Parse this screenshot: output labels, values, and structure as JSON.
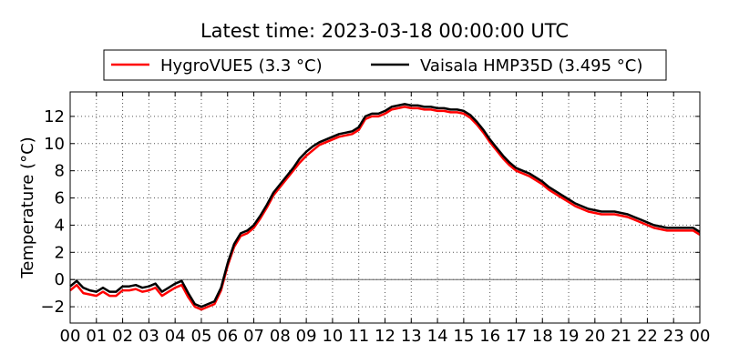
{
  "chart_data": {
    "type": "line",
    "title": "Latest time: 2023-03-18 00:00:00 UTC",
    "ylabel": "Temperature (°C)",
    "xlabel": "",
    "xlim": [
      0,
      24
    ],
    "ylim": [
      -3.2,
      13.8
    ],
    "x_ticks": [
      "00",
      "01",
      "02",
      "03",
      "04",
      "05",
      "06",
      "07",
      "08",
      "09",
      "10",
      "11",
      "12",
      "13",
      "14",
      "15",
      "16",
      "17",
      "18",
      "19",
      "20",
      "21",
      "22",
      "23",
      "00"
    ],
    "y_ticks": [
      -2,
      0,
      2,
      4,
      6,
      8,
      10,
      12
    ],
    "grid": true,
    "grid_style": "dotted",
    "zero_line": true,
    "legend_position": "top",
    "series": [
      {
        "name": "HygroVUE5 (3.3 °C)",
        "color": "#ff0000",
        "x": [
          0,
          0.25,
          0.5,
          0.75,
          1,
          1.25,
          1.5,
          1.75,
          2,
          2.25,
          2.5,
          2.75,
          3,
          3.25,
          3.5,
          3.75,
          4,
          4.25,
          4.5,
          4.75,
          5,
          5.25,
          5.5,
          5.75,
          6,
          6.25,
          6.5,
          6.75,
          7,
          7.25,
          7.5,
          7.75,
          8,
          8.25,
          8.5,
          8.75,
          9,
          9.25,
          9.5,
          9.75,
          10,
          10.25,
          10.5,
          10.75,
          11,
          11.25,
          11.5,
          11.75,
          12,
          12.25,
          12.5,
          12.75,
          13,
          13.25,
          13.5,
          13.75,
          14,
          14.25,
          14.5,
          14.75,
          15,
          15.25,
          15.5,
          15.75,
          16,
          16.25,
          16.5,
          16.75,
          17,
          17.25,
          17.5,
          17.75,
          18,
          18.25,
          18.5,
          18.75,
          19,
          19.25,
          19.5,
          19.75,
          20,
          20.25,
          20.5,
          20.75,
          21,
          21.25,
          21.5,
          21.75,
          22,
          22.25,
          22.5,
          22.75,
          23,
          23.25,
          23.5,
          23.75,
          24
        ],
        "y": [
          -0.8,
          -0.4,
          -1.0,
          -1.1,
          -1.2,
          -0.9,
          -1.2,
          -1.2,
          -0.8,
          -0.8,
          -0.7,
          -0.9,
          -0.8,
          -0.6,
          -1.2,
          -0.9,
          -0.6,
          -0.4,
          -1.3,
          -2.0,
          -2.2,
          -2.0,
          -1.8,
          -0.8,
          1.0,
          2.4,
          3.2,
          3.4,
          3.8,
          4.5,
          5.3,
          6.2,
          6.8,
          7.4,
          8.0,
          8.6,
          9.1,
          9.5,
          9.9,
          10.1,
          10.3,
          10.5,
          10.6,
          10.7,
          11.0,
          11.8,
          12.0,
          12.0,
          12.2,
          12.5,
          12.6,
          12.7,
          12.6,
          12.6,
          12.5,
          12.5,
          12.4,
          12.4,
          12.3,
          12.3,
          12.2,
          11.9,
          11.4,
          10.8,
          10.1,
          9.5,
          8.9,
          8.4,
          8.0,
          7.8,
          7.6,
          7.3,
          7.0,
          6.6,
          6.3,
          6.0,
          5.7,
          5.4,
          5.2,
          5.0,
          4.9,
          4.8,
          4.8,
          4.8,
          4.7,
          4.6,
          4.4,
          4.2,
          4.0,
          3.8,
          3.7,
          3.6,
          3.6,
          3.6,
          3.6,
          3.6,
          3.3
        ]
      },
      {
        "name": "Vaisala HMP35D (3.495 °C)",
        "color": "#000000",
        "x": [
          0,
          0.25,
          0.5,
          0.75,
          1,
          1.25,
          1.5,
          1.75,
          2,
          2.25,
          2.5,
          2.75,
          3,
          3.25,
          3.5,
          3.75,
          4,
          4.25,
          4.5,
          4.75,
          5,
          5.25,
          5.5,
          5.75,
          6,
          6.25,
          6.5,
          6.75,
          7,
          7.25,
          7.5,
          7.75,
          8,
          8.25,
          8.5,
          8.75,
          9,
          9.25,
          9.5,
          9.75,
          10,
          10.25,
          10.5,
          10.75,
          11,
          11.25,
          11.5,
          11.75,
          12,
          12.25,
          12.5,
          12.75,
          13,
          13.25,
          13.5,
          13.75,
          14,
          14.25,
          14.5,
          14.75,
          15,
          15.25,
          15.5,
          15.75,
          16,
          16.25,
          16.5,
          16.75,
          17,
          17.25,
          17.5,
          17.75,
          18,
          18.25,
          18.5,
          18.75,
          19,
          19.25,
          19.5,
          19.75,
          20,
          20.25,
          20.5,
          20.75,
          21,
          21.25,
          21.5,
          21.75,
          22,
          22.25,
          22.5,
          22.75,
          23,
          23.25,
          23.5,
          23.75,
          24
        ],
        "y": [
          -0.5,
          -0.1,
          -0.6,
          -0.8,
          -0.9,
          -0.6,
          -0.9,
          -0.9,
          -0.5,
          -0.5,
          -0.4,
          -0.6,
          -0.5,
          -0.3,
          -0.9,
          -0.6,
          -0.3,
          -0.1,
          -1.0,
          -1.8,
          -2.0,
          -1.8,
          -1.6,
          -0.6,
          1.2,
          2.6,
          3.4,
          3.6,
          4.0,
          4.7,
          5.5,
          6.4,
          7.0,
          7.6,
          8.2,
          8.9,
          9.4,
          9.8,
          10.1,
          10.3,
          10.5,
          10.7,
          10.8,
          10.9,
          11.2,
          12.0,
          12.2,
          12.2,
          12.4,
          12.7,
          12.8,
          12.9,
          12.8,
          12.8,
          12.7,
          12.7,
          12.6,
          12.6,
          12.5,
          12.5,
          12.4,
          12.1,
          11.6,
          11.0,
          10.3,
          9.7,
          9.1,
          8.6,
          8.2,
          8.0,
          7.8,
          7.5,
          7.2,
          6.8,
          6.5,
          6.2,
          5.9,
          5.6,
          5.4,
          5.2,
          5.1,
          5.0,
          5.0,
          5.0,
          4.9,
          4.8,
          4.6,
          4.4,
          4.2,
          4.0,
          3.9,
          3.8,
          3.8,
          3.8,
          3.8,
          3.8,
          3.5
        ]
      }
    ]
  }
}
